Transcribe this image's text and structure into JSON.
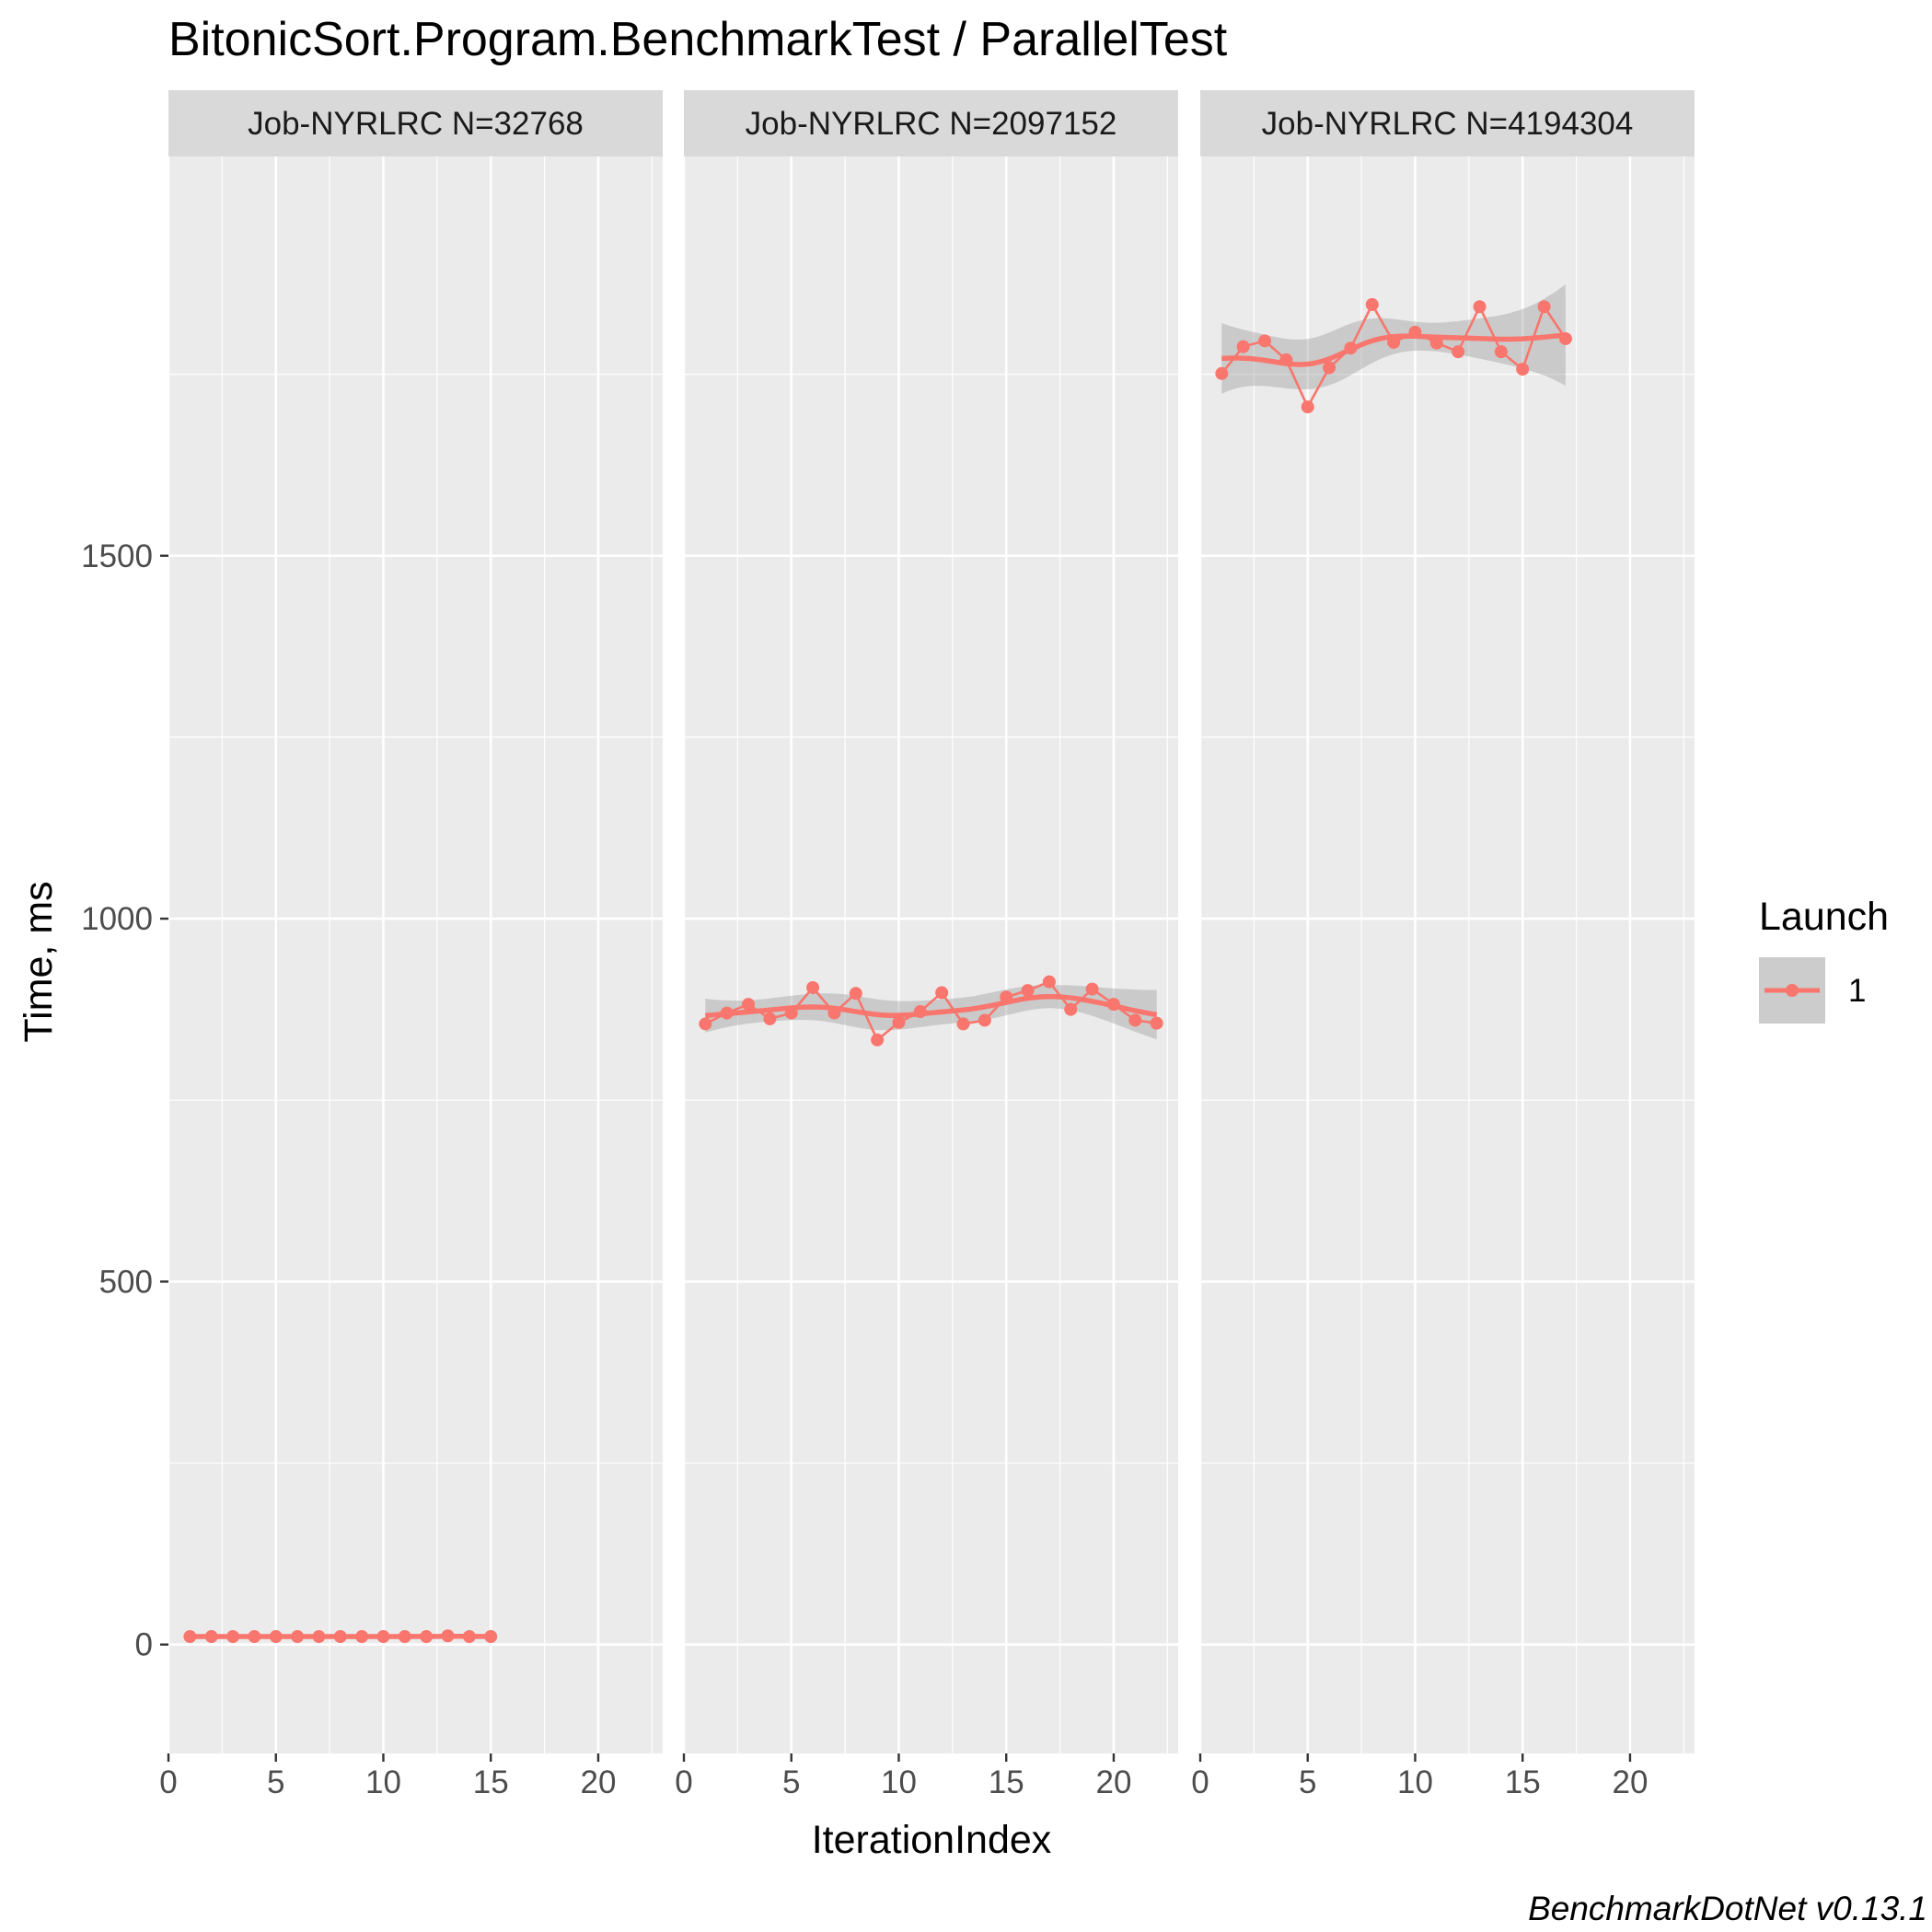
{
  "chart_data": {
    "type": "line",
    "title": "BitonicSort.Program.BenchmarkTest / ParallelTest",
    "xlabel": "IterationIndex",
    "ylabel": "Time, ms",
    "caption": "BenchmarkDotNet v0.13.1",
    "xlim": [
      0,
      23
    ],
    "ylim": [
      -150,
      2050
    ],
    "x_ticks": [
      0,
      5,
      10,
      15,
      20
    ],
    "y_ticks": [
      0,
      500,
      1000,
      1500
    ],
    "grid": true,
    "smooth": true,
    "legend": {
      "title": "Launch",
      "position": "right",
      "entries": [
        "1"
      ]
    },
    "colors": {
      "series": "#f8766d",
      "ribbon": "#999999",
      "panel": "#ebebeb",
      "strip": "#d9d9d9",
      "grid": "#ffffff"
    },
    "panels": [
      {
        "label": "Job-NYRLRC N=32768",
        "series": [
          {
            "name": "1",
            "x": [
              1,
              2,
              3,
              4,
              5,
              6,
              7,
              8,
              9,
              10,
              11,
              12,
              13,
              14,
              15
            ],
            "y": [
              11,
              11,
              11,
              11,
              11,
              11,
              11,
              11,
              11,
              11,
              11,
              11,
              12,
              11,
              11
            ]
          }
        ]
      },
      {
        "label": "Job-NYRLRC N=2097152",
        "series": [
          {
            "name": "1",
            "x": [
              1,
              2,
              3,
              4,
              5,
              6,
              7,
              8,
              9,
              10,
              11,
              12,
              13,
              14,
              15,
              16,
              17,
              18,
              19,
              20,
              21,
              22
            ],
            "y": [
              855,
              870,
              882,
              862,
              870,
              905,
              870,
              897,
              833,
              857,
              872,
              898,
              855,
              860,
              892,
              901,
              913,
              875,
              903,
              882,
              860,
              856
            ]
          }
        ]
      },
      {
        "label": "Job-NYRLRC N=4194304",
        "series": [
          {
            "name": "1",
            "x": [
              1,
              2,
              3,
              4,
              5,
              6,
              7,
              8,
              9,
              10,
              11,
              12,
              13,
              14,
              15,
              16,
              17
            ],
            "y": [
              1751,
              1788,
              1796,
              1770,
              1705,
              1759,
              1786,
              1846,
              1794,
              1808,
              1793,
              1781,
              1843,
              1781,
              1757,
              1843,
              1799
            ]
          }
        ]
      }
    ]
  }
}
